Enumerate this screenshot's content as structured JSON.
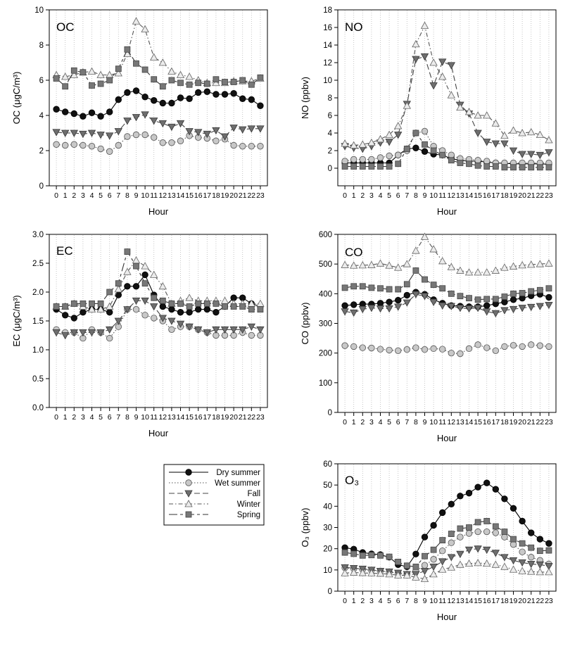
{
  "figure_title": "",
  "legend": {
    "entries": [
      {
        "key": "dry_summer",
        "label": "Dry summer"
      },
      {
        "key": "wet_summer",
        "label": "Wet summer"
      },
      {
        "key": "fall",
        "label": "Fall"
      },
      {
        "key": "winter",
        "label": "Winter"
      },
      {
        "key": "spring",
        "label": "Spring"
      }
    ]
  },
  "series_styles": {
    "dry_summer": {
      "marker": "circle",
      "fill": "#111111",
      "stroke": "#000000",
      "line": "#000000",
      "dash": ""
    },
    "wet_summer": {
      "marker": "circle",
      "fill": "#c8c8c8",
      "stroke": "#555555",
      "line": "#555555",
      "dash": "1.5,2.5"
    },
    "fall": {
      "marker": "triangle-down",
      "fill": "#6e6e6e",
      "stroke": "#3a3a3a",
      "line": "#444444",
      "dash": "8,4"
    },
    "winter": {
      "marker": "triangle-up",
      "fill": "#ebebeb",
      "stroke": "#666666",
      "line": "#555555",
      "dash": "6,3,1.5,3"
    },
    "spring": {
      "marker": "square",
      "fill": "#777777",
      "stroke": "#444444",
      "line": "#333333",
      "dash": "12,4,4,4"
    }
  },
  "chart_data": [
    {
      "id": "oc",
      "type": "line",
      "title": "OC",
      "xlabel": "Hour",
      "ylabel": "OC (μgC/m³)",
      "x": [
        0,
        1,
        2,
        3,
        4,
        5,
        6,
        7,
        8,
        9,
        10,
        11,
        12,
        13,
        14,
        15,
        16,
        17,
        18,
        19,
        20,
        21,
        22,
        23
      ],
      "xticks": [
        "0",
        "1",
        "2",
        "3",
        "4",
        "5",
        "6",
        "7",
        "8",
        "9",
        "10",
        "11",
        "12",
        "13",
        "14",
        "15",
        "16",
        "17",
        "18",
        "19",
        "20",
        "21",
        "22",
        "23"
      ],
      "ylim": [
        0,
        10
      ],
      "yticks": [
        "0",
        "2",
        "4",
        "6",
        "8",
        "10"
      ],
      "grid": "vertical",
      "series": [
        {
          "key": "dry_summer",
          "name": "Dry summer",
          "values": [
            4.35,
            4.2,
            4.1,
            3.95,
            4.15,
            3.95,
            4.2,
            4.9,
            5.3,
            5.4,
            5.05,
            4.85,
            4.7,
            4.7,
            5.0,
            4.95,
            5.3,
            5.35,
            5.2,
            5.2,
            5.25,
            4.95,
            4.9,
            4.55
          ]
        },
        {
          "key": "wet_summer",
          "name": "Wet summer",
          "values": [
            2.35,
            2.3,
            2.35,
            2.3,
            2.25,
            2.1,
            1.95,
            2.3,
            2.8,
            2.9,
            2.9,
            2.75,
            2.45,
            2.45,
            2.55,
            2.85,
            2.75,
            2.7,
            2.55,
            2.65,
            2.3,
            2.25,
            2.25,
            2.25
          ]
        },
        {
          "key": "fall",
          "name": "Fall",
          "values": [
            3.05,
            3.0,
            3.0,
            2.95,
            3.0,
            2.9,
            2.85,
            3.1,
            3.7,
            3.9,
            4.05,
            3.7,
            3.55,
            3.35,
            3.55,
            3.1,
            3.05,
            2.95,
            3.15,
            2.8,
            3.3,
            3.2,
            3.25,
            3.25
          ]
        },
        {
          "key": "winter",
          "name": "Winter",
          "values": [
            6.3,
            6.2,
            6.3,
            6.45,
            6.5,
            6.3,
            6.3,
            6.4,
            7.5,
            9.35,
            8.9,
            7.3,
            7.0,
            6.5,
            6.3,
            6.2,
            6.0,
            5.85,
            5.85,
            5.85,
            5.95,
            5.95,
            5.95,
            6.1
          ]
        },
        {
          "key": "spring",
          "name": "Spring",
          "values": [
            6.1,
            5.65,
            6.55,
            6.45,
            5.7,
            5.8,
            6.0,
            6.65,
            7.75,
            6.95,
            6.6,
            6.05,
            5.65,
            6.0,
            5.85,
            5.75,
            5.85,
            5.8,
            6.05,
            5.9,
            5.9,
            6.0,
            5.75,
            6.15
          ]
        }
      ]
    },
    {
      "id": "no",
      "type": "line",
      "title": "NO",
      "xlabel": "Hour",
      "ylabel": "NO (ppbv)",
      "x": [
        0,
        1,
        2,
        3,
        4,
        5,
        6,
        7,
        8,
        9,
        10,
        11,
        12,
        13,
        14,
        15,
        16,
        17,
        18,
        19,
        20,
        21,
        22,
        23
      ],
      "xticks": [
        "0",
        "1",
        "2",
        "3",
        "4",
        "5",
        "6",
        "7",
        "8",
        "9",
        "10",
        "11",
        "12",
        "13",
        "14",
        "15",
        "16",
        "17",
        "18",
        "19",
        "20",
        "21",
        "22",
        "23"
      ],
      "ylim": [
        -2,
        18
      ],
      "yticks": [
        "0",
        "2",
        "4",
        "6",
        "8",
        "10",
        "12",
        "14",
        "16",
        "18"
      ],
      "grid": "vertical",
      "series": [
        {
          "key": "dry_summer",
          "name": "Dry summer",
          "values": [
            0.6,
            0.6,
            0.6,
            0.6,
            0.6,
            0.6,
            1.5,
            2.2,
            2.3,
            1.9,
            1.6,
            1.5,
            1.1,
            0.9,
            0.8,
            0.8,
            0.7,
            0.6,
            0.55,
            0.5,
            0.5,
            0.5,
            0.5,
            0.45
          ]
        },
        {
          "key": "wet_summer",
          "name": "Wet summer",
          "values": [
            0.8,
            1.0,
            1.0,
            1.0,
            1.2,
            1.4,
            1.5,
            2.0,
            4.0,
            4.2,
            2.5,
            2.0,
            1.5,
            1.1,
            1.0,
            0.9,
            0.8,
            0.6,
            0.6,
            0.6,
            0.6,
            0.6,
            0.6,
            0.6
          ]
        },
        {
          "key": "fall",
          "name": "Fall",
          "values": [
            2.5,
            2.3,
            2.2,
            2.5,
            2.9,
            3.0,
            3.8,
            7.3,
            12.4,
            12.7,
            9.4,
            12.1,
            11.7,
            7.2,
            6.2,
            4.0,
            3.0,
            2.8,
            2.8,
            2.0,
            1.6,
            1.6,
            1.5,
            1.8
          ]
        },
        {
          "key": "winter",
          "name": "Winter",
          "values": [
            2.8,
            2.6,
            2.7,
            2.9,
            3.3,
            3.8,
            4.8,
            7.1,
            14.1,
            16.2,
            12.0,
            10.4,
            8.3,
            6.9,
            6.4,
            6.0,
            6.0,
            5.1,
            3.7,
            4.3,
            4.0,
            4.1,
            3.8,
            3.2
          ]
        },
        {
          "key": "spring",
          "name": "Spring",
          "values": [
            0.2,
            0.2,
            0.2,
            0.2,
            0.2,
            0.2,
            0.5,
            2.2,
            4.0,
            2.7,
            2.0,
            1.5,
            0.9,
            0.6,
            0.5,
            0.3,
            0.2,
            0.2,
            0.1,
            0.1,
            0.1,
            0.1,
            0.1,
            0.1
          ]
        }
      ]
    },
    {
      "id": "ec",
      "type": "line",
      "title": "EC",
      "xlabel": "Hour",
      "ylabel": "EC (μgC/m³)",
      "x": [
        0,
        1,
        2,
        3,
        4,
        5,
        6,
        7,
        8,
        9,
        10,
        11,
        12,
        13,
        14,
        15,
        16,
        17,
        18,
        19,
        20,
        21,
        22,
        23
      ],
      "xticks": [
        "0",
        "1",
        "2",
        "3",
        "4",
        "5",
        "6",
        "7",
        "8",
        "9",
        "10",
        "11",
        "12",
        "13",
        "14",
        "15",
        "16",
        "17",
        "18",
        "19",
        "20",
        "21",
        "22",
        "23"
      ],
      "ylim": [
        0,
        3
      ],
      "yticks": [
        "0.0",
        "0.5",
        "1.0",
        "1.5",
        "2.0",
        "2.5",
        "3.0"
      ],
      "grid": "vertical",
      "series": [
        {
          "key": "dry_summer",
          "name": "Dry summer",
          "values": [
            1.7,
            1.6,
            1.55,
            1.65,
            1.7,
            1.7,
            1.65,
            1.95,
            2.1,
            2.1,
            2.3,
            1.95,
            1.75,
            1.7,
            1.65,
            1.65,
            1.7,
            1.7,
            1.65,
            1.75,
            1.9,
            1.9,
            1.8,
            1.75
          ]
        },
        {
          "key": "wet_summer",
          "name": "Wet summer",
          "values": [
            1.35,
            1.3,
            1.3,
            1.2,
            1.35,
            1.3,
            1.2,
            1.4,
            1.7,
            1.7,
            1.6,
            1.55,
            1.5,
            1.35,
            1.4,
            1.4,
            1.35,
            1.3,
            1.25,
            1.25,
            1.25,
            1.3,
            1.25,
            1.25
          ]
        },
        {
          "key": "fall",
          "name": "Fall",
          "values": [
            1.3,
            1.25,
            1.3,
            1.3,
            1.3,
            1.3,
            1.35,
            1.5,
            1.7,
            1.85,
            1.85,
            1.75,
            1.55,
            1.5,
            1.45,
            1.4,
            1.35,
            1.3,
            1.35,
            1.35,
            1.35,
            1.35,
            1.4,
            1.35
          ]
        },
        {
          "key": "winter",
          "name": "Winter",
          "values": [
            1.75,
            1.75,
            1.8,
            1.75,
            1.7,
            1.7,
            1.75,
            2.05,
            2.35,
            2.55,
            2.45,
            2.3,
            2.1,
            1.8,
            1.85,
            1.9,
            1.85,
            1.85,
            1.85,
            1.85,
            1.8,
            1.8,
            1.8,
            1.8
          ]
        },
        {
          "key": "spring",
          "name": "Spring",
          "values": [
            1.75,
            1.75,
            1.8,
            1.8,
            1.8,
            1.8,
            2.0,
            2.15,
            2.7,
            2.45,
            2.15,
            1.9,
            1.85,
            1.8,
            1.8,
            1.75,
            1.8,
            1.8,
            1.8,
            1.75,
            1.75,
            1.75,
            1.7,
            1.7
          ]
        }
      ]
    },
    {
      "id": "co",
      "type": "line",
      "title": "CO",
      "xlabel": "Hour",
      "ylabel": "CO (ppbv)",
      "x": [
        0,
        1,
        2,
        3,
        4,
        5,
        6,
        7,
        8,
        9,
        10,
        11,
        12,
        13,
        14,
        15,
        16,
        17,
        18,
        19,
        20,
        21,
        22,
        23
      ],
      "xticks": [
        "0",
        "1",
        "2",
        "3",
        "4",
        "5",
        "6",
        "7",
        "8",
        "9",
        "10",
        "11",
        "12",
        "13",
        "14",
        "15",
        "16",
        "17",
        "18",
        "19",
        "20",
        "21",
        "22",
        "23"
      ],
      "ylim": [
        0,
        600
      ],
      "yticks": [
        "0",
        "100",
        "200",
        "300",
        "400",
        "500",
        "600"
      ],
      "grid": "vertical",
      "series": [
        {
          "key": "dry_summer",
          "name": "Dry summer",
          "values": [
            360,
            363,
            365,
            365,
            368,
            372,
            378,
            395,
            405,
            398,
            380,
            368,
            360,
            358,
            356,
            356,
            360,
            366,
            372,
            380,
            385,
            393,
            398,
            388
          ]
        },
        {
          "key": "wet_summer",
          "name": "Wet summer",
          "values": [
            225,
            222,
            218,
            217,
            213,
            210,
            208,
            212,
            218,
            212,
            215,
            213,
            200,
            198,
            215,
            228,
            218,
            208,
            222,
            226,
            222,
            228,
            225,
            222
          ]
        },
        {
          "key": "fall",
          "name": "Fall",
          "values": [
            340,
            336,
            348,
            352,
            350,
            350,
            356,
            370,
            398,
            392,
            372,
            360,
            358,
            352,
            350,
            352,
            340,
            334,
            344,
            348,
            352,
            355,
            358,
            362
          ]
        },
        {
          "key": "winter",
          "name": "Winter",
          "values": [
            497,
            495,
            496,
            497,
            502,
            495,
            488,
            500,
            545,
            592,
            550,
            510,
            490,
            478,
            472,
            472,
            472,
            478,
            488,
            492,
            496,
            498,
            500,
            502
          ]
        },
        {
          "key": "spring",
          "name": "Spring",
          "values": [
            420,
            425,
            425,
            420,
            418,
            415,
            415,
            432,
            478,
            448,
            430,
            418,
            400,
            392,
            385,
            380,
            382,
            382,
            390,
            400,
            402,
            408,
            412,
            418
          ]
        }
      ]
    },
    {
      "id": "o3",
      "type": "line",
      "title": "O₃",
      "xlabel": "Hour",
      "ylabel": "O₃ (ppbv)",
      "x": [
        0,
        1,
        2,
        3,
        4,
        5,
        6,
        7,
        8,
        9,
        10,
        11,
        12,
        13,
        14,
        15,
        16,
        17,
        18,
        19,
        20,
        21,
        22,
        23
      ],
      "xticks": [
        "0",
        "1",
        "2",
        "3",
        "4",
        "5",
        "6",
        "7",
        "8",
        "9",
        "10",
        "11",
        "12",
        "13",
        "14",
        "15",
        "16",
        "17",
        "18",
        "19",
        "20",
        "21",
        "22",
        "23"
      ],
      "ylim": [
        0,
        60
      ],
      "yticks": [
        "0",
        "10",
        "20",
        "30",
        "40",
        "50",
        "60"
      ],
      "grid": "vertical",
      "series": [
        {
          "key": "dry_summer",
          "name": "Dry summer",
          "values": [
            20.5,
            19.8,
            18.2,
            17.6,
            17.2,
            16.0,
            12.5,
            11.5,
            17.5,
            25.5,
            31.0,
            37.0,
            41.0,
            44.8,
            46.2,
            49.0,
            51.0,
            48.0,
            43.5,
            39.0,
            33.0,
            27.5,
            24.5,
            22.5
          ]
        },
        {
          "key": "wet_summer",
          "name": "Wet summer",
          "values": [
            11.0,
            10.5,
            10.2,
            9.8,
            9.5,
            9.0,
            8.5,
            8.0,
            9.5,
            12.2,
            15.0,
            19.0,
            22.8,
            25.5,
            27.2,
            28.0,
            28.0,
            27.5,
            25.5,
            22.0,
            18.5,
            16.0,
            14.5,
            12.8
          ]
        },
        {
          "key": "fall",
          "name": "Fall",
          "values": [
            11.2,
            10.8,
            10.5,
            10.0,
            9.5,
            9.2,
            8.6,
            8.0,
            8.0,
            9.5,
            11.5,
            14.0,
            16.0,
            17.5,
            19.5,
            20.0,
            19.5,
            18.0,
            16.0,
            14.5,
            13.5,
            12.8,
            12.5,
            11.8
          ]
        },
        {
          "key": "winter",
          "name": "Winter",
          "values": [
            8.5,
            8.8,
            8.6,
            8.5,
            8.3,
            8.0,
            7.5,
            7.5,
            6.5,
            5.8,
            8.0,
            10.2,
            11.2,
            12.5,
            13.0,
            13.3,
            13.0,
            12.5,
            11.5,
            10.2,
            9.5,
            9.2,
            9.0,
            9.0
          ]
        },
        {
          "key": "spring",
          "name": "Spring",
          "values": [
            18.2,
            17.6,
            16.8,
            17.0,
            16.8,
            16.2,
            13.8,
            12.0,
            11.5,
            16.5,
            19.5,
            24.0,
            27.0,
            29.5,
            30.0,
            32.5,
            33.0,
            30.5,
            28.0,
            24.5,
            22.5,
            20.5,
            19.0,
            19.2
          ]
        }
      ]
    }
  ]
}
